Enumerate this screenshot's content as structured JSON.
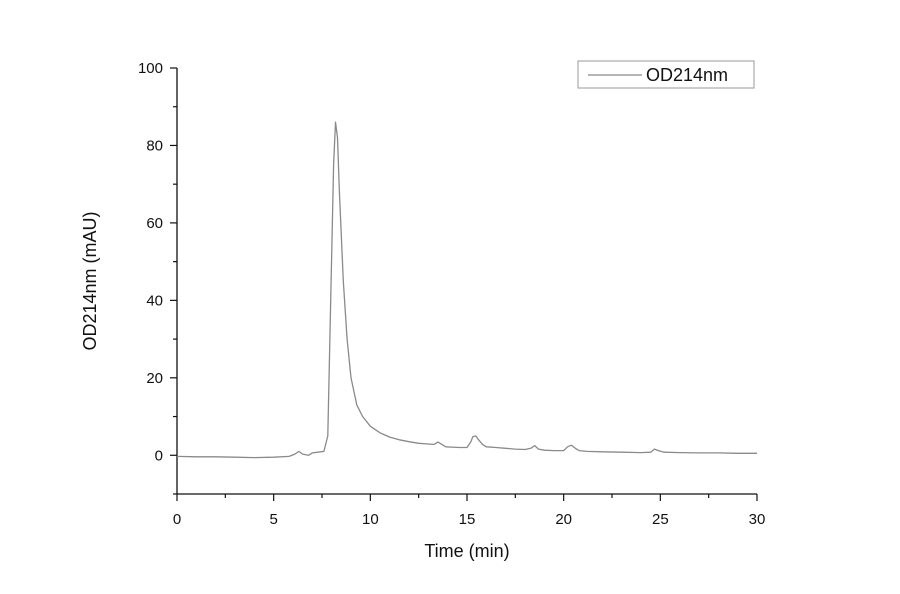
{
  "chart_data": {
    "type": "line",
    "title": "",
    "xlabel": "Time (min)",
    "ylabel": "OD214nm (mAU)",
    "xlim": [
      0,
      30
    ],
    "ylim": [
      -10,
      100
    ],
    "xticks": [
      0,
      5,
      10,
      15,
      20,
      25,
      30
    ],
    "yticks": [
      0,
      20,
      40,
      60,
      80,
      100
    ],
    "xtick_labels": [
      "0",
      "5",
      "10",
      "15",
      "20",
      "25",
      "30"
    ],
    "ytick_labels": [
      "0",
      "20",
      "40",
      "60",
      "80",
      "100"
    ],
    "grid": false,
    "legend_position": "top-right",
    "series": [
      {
        "name": "OD214nm",
        "color": "#8a8a8a",
        "x": [
          0,
          1,
          2,
          3,
          4,
          5,
          5.8,
          6.1,
          6.3,
          6.5,
          6.8,
          7.0,
          7.3,
          7.6,
          7.8,
          7.95,
          8.1,
          8.2,
          8.3,
          8.4,
          8.6,
          8.8,
          9.0,
          9.3,
          9.6,
          10.0,
          10.5,
          11.0,
          11.5,
          12.0,
          12.5,
          13.0,
          13.3,
          13.5,
          13.7,
          13.9,
          14.2,
          14.6,
          15.0,
          15.2,
          15.3,
          15.45,
          15.6,
          15.8,
          16.0,
          16.5,
          17.0,
          17.5,
          18.0,
          18.3,
          18.5,
          18.7,
          19.0,
          19.5,
          20.0,
          20.2,
          20.4,
          20.6,
          20.8,
          21.2,
          22.0,
          23.0,
          24.0,
          24.5,
          24.7,
          24.9,
          25.2,
          26.0,
          27.0,
          28.0,
          29.0,
          30.0
        ],
        "y": [
          -0.3,
          -0.4,
          -0.4,
          -0.5,
          -0.6,
          -0.5,
          -0.3,
          0.3,
          1.0,
          0.3,
          0.0,
          0.6,
          0.8,
          1.0,
          5.0,
          40.0,
          75.0,
          86.0,
          82.0,
          68.0,
          45.0,
          30.0,
          20.0,
          13.0,
          10.0,
          7.5,
          5.8,
          4.7,
          4.0,
          3.5,
          3.1,
          2.9,
          2.8,
          3.4,
          2.8,
          2.2,
          2.1,
          2.0,
          2.0,
          3.5,
          4.8,
          5.0,
          4.0,
          2.8,
          2.2,
          2.0,
          1.8,
          1.6,
          1.5,
          1.8,
          2.5,
          1.6,
          1.3,
          1.2,
          1.2,
          2.2,
          2.6,
          1.8,
          1.2,
          1.0,
          0.9,
          0.8,
          0.7,
          0.8,
          1.6,
          1.2,
          0.8,
          0.7,
          0.6,
          0.6,
          0.5,
          0.5
        ]
      }
    ]
  }
}
